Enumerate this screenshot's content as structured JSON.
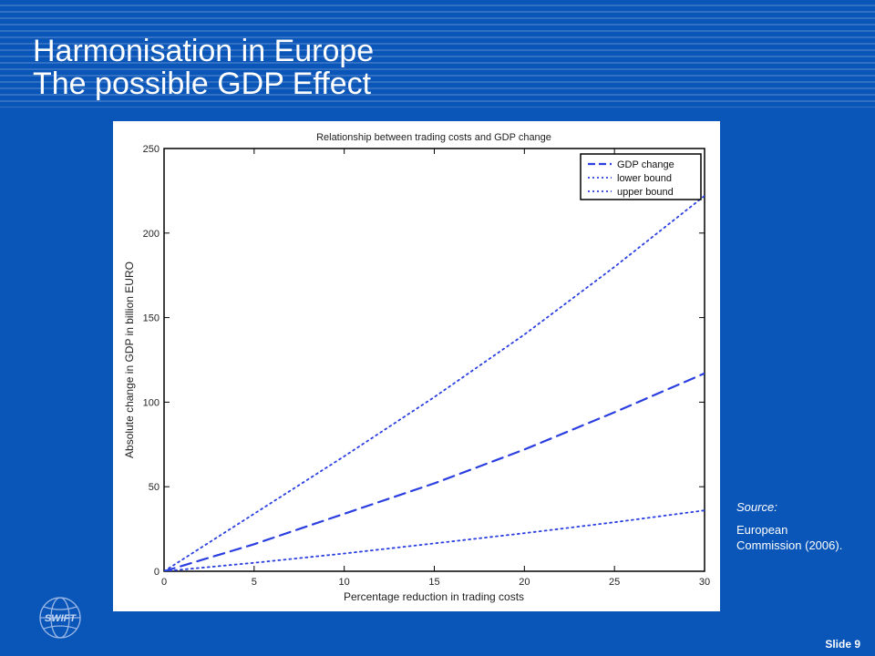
{
  "slide": {
    "title_line1": "Harmonisation in Europe",
    "title_line2": "The possible GDP Effect",
    "source_label": "Source:",
    "source_text": "European Commission (2006).",
    "slide_number": "Slide 9",
    "logo_text": "SWIFT",
    "logo_icon": "globe-icon"
  },
  "colors": {
    "background": "#0a55b8",
    "series_line": "#2b3fe0"
  },
  "chart_data": {
    "type": "line",
    "title": "Relationship between trading costs and GDP change",
    "xlabel": "Percentage reduction in trading costs",
    "ylabel": "Absolute change in GDP in billion EURO",
    "xlim": [
      0,
      30
    ],
    "ylim": [
      0,
      250
    ],
    "xticks": [
      0,
      5,
      10,
      15,
      20,
      25,
      30
    ],
    "yticks": [
      0,
      50,
      100,
      150,
      200,
      250
    ],
    "grid": false,
    "legend_position": "top-right",
    "x": [
      0,
      5,
      10,
      15,
      20,
      25,
      30
    ],
    "series": [
      {
        "name": "GDP change",
        "style": "dashed",
        "values": [
          0,
          16,
          34,
          52,
          72,
          94,
          117
        ]
      },
      {
        "name": "lower bound",
        "style": "dotted",
        "values": [
          0,
          5,
          10.5,
          16.5,
          22.5,
          29,
          36
        ]
      },
      {
        "name": "upper bound",
        "style": "dotted",
        "values": [
          0,
          34,
          68,
          103,
          140,
          180,
          222
        ]
      }
    ]
  }
}
